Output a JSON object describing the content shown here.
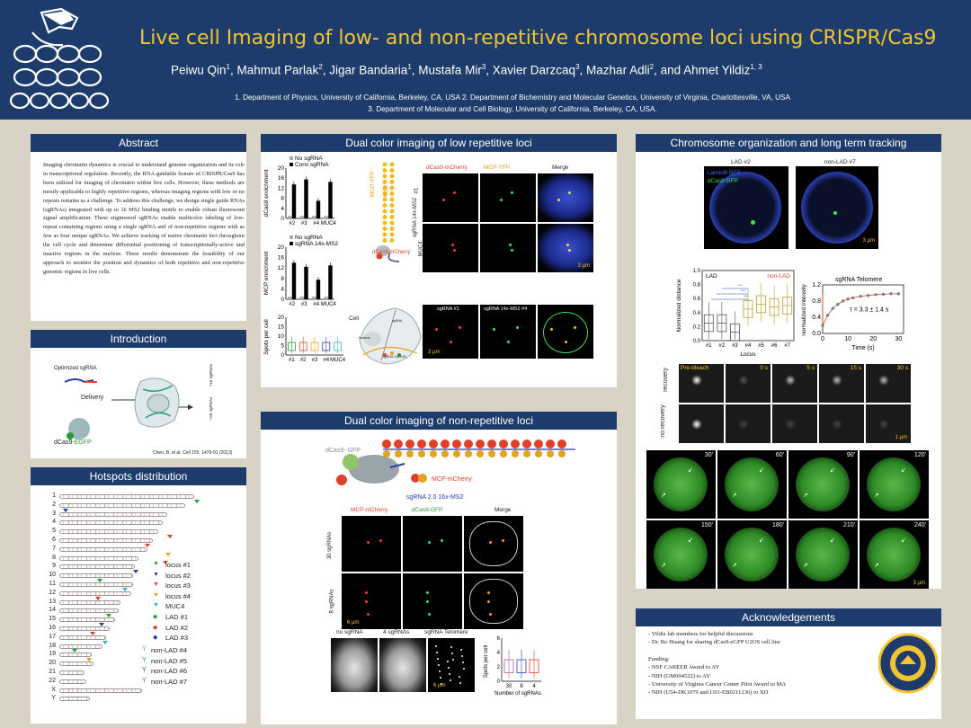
{
  "header": {
    "title": "Live cell Imaging of low- and non-repetitive chromosome loci using CRISPR/Cas9",
    "authors": [
      {
        "name": "Peiwu Qin",
        "sup": "1"
      },
      {
        "name": "Mahmut Parlak",
        "sup": "2"
      },
      {
        "name": "Jigar Bandaria",
        "sup": "1"
      },
      {
        "name": "Mustafa Mir",
        "sup": "3"
      },
      {
        "name": "Xavier Darzcaq",
        "sup": "3"
      },
      {
        "name": "Mazhar Adli",
        "sup": "2"
      },
      {
        "name": "and Ahmet Yildiz",
        "sup": "1, 3"
      }
    ],
    "affil1": "1. Department of Physics, University of California, Berkeley, CA, USA 2. Department of Bichemistry and Molecular Genetics, University of Virginia, Charlottesville, VA, USA",
    "affil2": "3. Department of Molecular and Cell Biology, University of California, Berkeley, CA, USA."
  },
  "abstract": {
    "title": "Abstract",
    "text": "Imaging chromatin dynamics is crucial to understand genome organization and its role in transcriptional regulation. Recently, the RNA-guidable feature of CRISPR/Cas9 has been utilized for imaging of chromatin within live cells. However, these methods are mostly applicable to highly repetitive regions, whereas imaging regions with low or no repeats remains as a challenge. To address this challenge, we design single guide RNAs (sgRNAs) integrated with up to 16 MS2 binding motifs to enable robust fluorescent signal amplification. These engineered sgRNAs enable multicolor labeling of low-repeat containing regions using a single sgRNA and of non-repetitive regions with as few as four unique sgRNAs. We achieve tracking of native chromatin loci throughout the cell cycle and determine differential positioning of transcriptionally-active and inactive regions in the nucleus. These results demonstrate the feasibility of our approach to monitor the position and dynamics of both repetitive and non-repetitive genomic regions in live cells."
  },
  "intro": {
    "title": "Introduction",
    "optimized": "Optimized sgRNA",
    "delivery": "Delivery",
    "dcas": "dCas9-",
    "dcas_egfp": "EGFP",
    "side1": "+26 sgRNAs",
    "side2": "+16 sgRNAs",
    "citation": "Chen, B. et al. Cell 155, 1479-91 (2013)"
  },
  "hotspots": {
    "title": "Hotspots distribution",
    "chromosomes": [
      "1",
      "2",
      "3",
      "4",
      "5",
      "6",
      "7",
      "8",
      "9",
      "10",
      "11",
      "12",
      "13",
      "14",
      "15",
      "16",
      "17",
      "18",
      "19",
      "20",
      "21",
      "22",
      "X",
      "Y"
    ],
    "legend": [
      {
        "label": "locus #1",
        "color": "#2a9a3a",
        "shape": "tri"
      },
      {
        "label": "locus #2",
        "color": "#2a3fa0",
        "shape": "tri"
      },
      {
        "label": "locus #3",
        "color": "#e0402a",
        "shape": "tri"
      },
      {
        "label": "locus #4",
        "color": "#e8a020",
        "shape": "tri"
      },
      {
        "label": "MUC4",
        "color": "#3ab0d0",
        "shape": "tri"
      },
      {
        "label": "LAD #1",
        "color": "#2a9a3a",
        "shape": "dia"
      },
      {
        "label": "LAD #2",
        "color": "#e0402a",
        "shape": "dia"
      },
      {
        "label": "LAD #3",
        "color": "#2a3fa0",
        "shape": "dia"
      },
      {
        "label": "non-LAD #4",
        "color": "#3ab0d0",
        "shape": "y"
      },
      {
        "label": "non-LAD #5",
        "color": "#2a9a3a",
        "shape": "y"
      },
      {
        "label": "non-LAD #6",
        "color": "#2a3fa0",
        "shape": "y"
      },
      {
        "label": "non-LAD #7",
        "color": "#e0402a",
        "shape": "y"
      }
    ]
  },
  "low_rep": {
    "title": "Dual color imaging of low repetitive loci",
    "chart1": {
      "legend": [
        "No sgRNA",
        "Conv sgRNA"
      ],
      "ylabel": "dCas9 enrichment",
      "yticks": [
        "20",
        "16",
        "12",
        "8",
        "4",
        "0"
      ],
      "xcats": [
        "#2",
        "#3",
        "#4",
        "MUC4"
      ]
    },
    "chart2": {
      "legend": [
        "No sgRNA",
        "sgRNA 14x-MS2"
      ],
      "ylabel": "MCP enrichment",
      "yticks": [
        "20",
        "16",
        "12",
        "8",
        "4",
        "0"
      ],
      "xcats": [
        "#2",
        "#3",
        "#4",
        "MUC4"
      ]
    },
    "chart3": {
      "ylabel": "Spots per cell",
      "yticks": [
        "20",
        "15",
        "10",
        "5",
        "0"
      ],
      "xcats": [
        "#1",
        "#2",
        "#3",
        "#4",
        "MUC4"
      ]
    },
    "mcp_yfp": "MCP-YFP",
    "ms2": "MS2",
    "dcas_mcherry": "dCas9-mCherry",
    "sgrna_side": "sgRNA 14x-MS2",
    "one": "#1",
    "muc4": "MUC4",
    "cols": [
      "dCas9-mCherry",
      "MCP-YFP",
      "Merge"
    ],
    "scale": "3 µm",
    "cell_label": "Cell",
    "nucleus": "Nucleus",
    "sgrna_small": "sgRNA",
    "sub1": "sgRNA #1",
    "sub2": "sgRNA 14x-MS2 #4",
    "scale2": "3 µm"
  },
  "nonrep": {
    "title": "Dual color imaging of non-repetitive loci",
    "dcas_gfp": "dCas9- GFP",
    "mcp_mcherry": "MCP-mCherry",
    "sgrna": "sgRNA 2.0 16x-MS2",
    "cols": [
      "MCP-mCherry",
      "dCas9-GFP",
      "Merge"
    ],
    "row1": "30 sgRNAs",
    "row2": "8 sgRNAs",
    "scale": "6 µm",
    "bottom": [
      "no sgRNA",
      "4 sgRNAs",
      "sgRNA Telomere"
    ],
    "scale2": "6 µm",
    "box": {
      "ylabel": "Spots per cell",
      "yticks": [
        "6",
        "4",
        "2",
        "0"
      ],
      "xcats": [
        "30",
        "8",
        "4"
      ],
      "xlabel": "Number of sgRNAs"
    }
  },
  "chromo": {
    "title": "Chromosome organization and long term tracking",
    "lad": "LAD #2",
    "nonlad": "non-LAD #7",
    "laminb": "LaminB BFP",
    "dcas": "dCas9 GFP",
    "scale": "3 µm",
    "dist": {
      "ylabel": "Normalized distance",
      "yticks": [
        "1.0",
        "0.8",
        "0.6",
        "0.4",
        "0.2",
        "0.0"
      ],
      "xcats": [
        "#1",
        "#2",
        "#3",
        "#4",
        "#5",
        "#6",
        "#7"
      ],
      "xlabel": "Locus",
      "lad": "LAD",
      "nonlad": "non-LAD",
      "stars": "***"
    },
    "telo": {
      "title": "sgRNA Telomere",
      "ylabel": "normalized intensity",
      "yticks": [
        "1.2",
        "0.8",
        "0.4",
        "0.0"
      ],
      "xticks": [
        "0",
        "10",
        "20",
        "30"
      ],
      "xlabel": "Time  (s)",
      "tau": "τ = 3.3 ± 1.4 s"
    },
    "frap": {
      "times": [
        "Pre-bleach",
        "0 s",
        "5 s",
        "15 s",
        "30 s"
      ],
      "row1": "recovery",
      "row2": "no recovery",
      "scale": "1 µm"
    },
    "track": [
      "30'",
      "60'",
      "90'",
      "120'",
      "150'",
      "180'",
      "210'",
      "240'"
    ],
    "scale2": "3 µm"
  },
  "ack": {
    "title": "Acknowledgements",
    "lines": [
      "- Yildiz lab members for helpful discussions",
      "- Dr. Bo Huang for sharing dCas9-eGFP U2OS cell line",
      "",
      "Funding:",
      "- NSF CAREER Award to AY",
      "- NIH (GM094522) to AY",
      "- University of Virginia Cancer Center Pilot Award to MA",
      "- NIH (U54-DK1079 and U01-EB0211236) to XD"
    ]
  },
  "chart_data": [
    {
      "type": "bar",
      "ylabel": "dCas9 enrichment",
      "categories": [
        "#2",
        "#3",
        "#4",
        "MUC4"
      ],
      "series": [
        {
          "name": "No sgRNA",
          "values": [
            1,
            1,
            1,
            1
          ]
        },
        {
          "name": "Conv sgRNA",
          "values": [
            13.5,
            15.5,
            7,
            14.5
          ]
        }
      ],
      "ylim": [
        0,
        20
      ]
    },
    {
      "type": "bar",
      "ylabel": "MCP enrichment",
      "categories": [
        "#2",
        "#3",
        "#4",
        "MUC4"
      ],
      "series": [
        {
          "name": "No sgRNA",
          "values": [
            1,
            1,
            1,
            1
          ]
        },
        {
          "name": "sgRNA 14x-MS2",
          "values": [
            14,
            12.5,
            7.5,
            13
          ]
        }
      ],
      "ylim": [
        0,
        20
      ]
    },
    {
      "type": "bar",
      "ylabel": "Normalized distance",
      "categories": [
        "#1",
        "#2",
        "#3",
        "#4",
        "#5",
        "#6",
        "#7"
      ],
      "values": [
        0.25,
        0.25,
        0.12,
        0.45,
        0.52,
        0.48,
        0.5
      ],
      "ylim": [
        0,
        1.0
      ]
    },
    {
      "type": "line",
      "title": "sgRNA Telomere",
      "xlabel": "Time  (s)",
      "ylabel": "normalized intensity",
      "x": [
        0,
        2,
        4,
        6,
        8,
        10,
        12,
        15,
        18,
        21,
        24,
        27,
        30
      ],
      "y": [
        0.2,
        0.45,
        0.62,
        0.72,
        0.8,
        0.85,
        0.88,
        0.92,
        0.94,
        0.96,
        0.97,
        0.98,
        0.98
      ],
      "xlim": [
        0,
        32
      ],
      "ylim": [
        0,
        1.2
      ]
    }
  ]
}
